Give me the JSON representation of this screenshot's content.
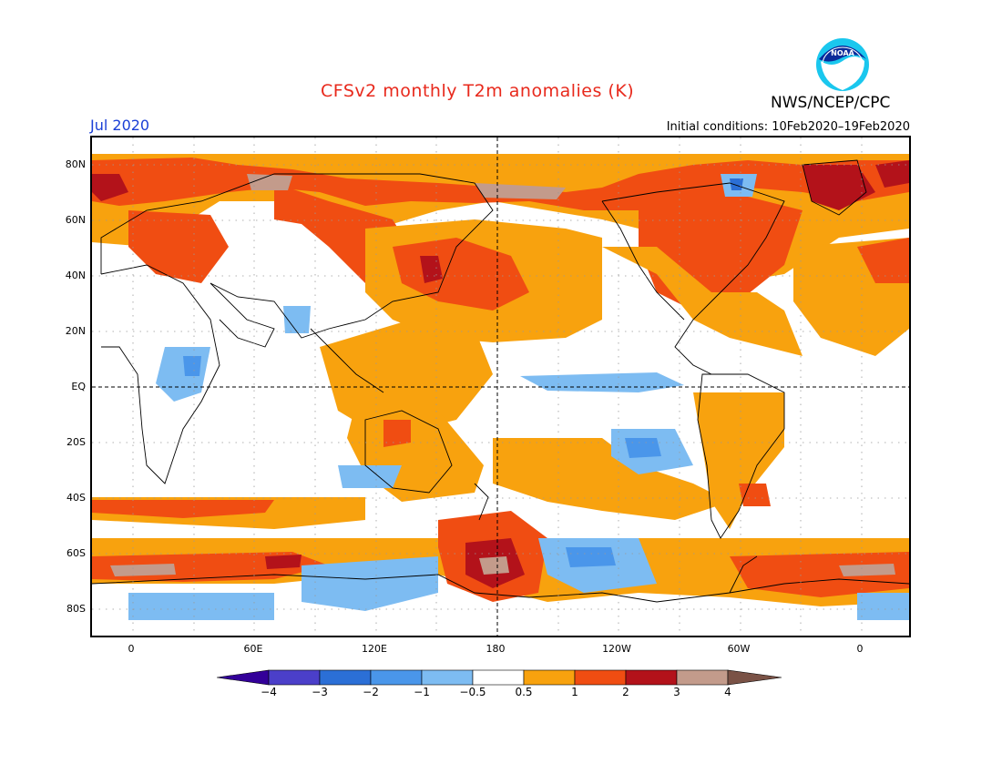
{
  "header": {
    "title": "CFSv2 monthly T2m anomalies (K)",
    "agency": "NWS/NCEP/CPC",
    "valid_month": "Jul 2020",
    "initial_conditions": "Initial conditions: 10Feb2020–19Feb2020",
    "logo_text": "NOAA"
  },
  "map": {
    "projection": "cylindrical equidistant",
    "lat_labels": [
      "80N",
      "60N",
      "40N",
      "20N",
      "EQ",
      "20S",
      "40S",
      "60S",
      "80S"
    ],
    "lon_labels": [
      "0",
      "60E",
      "120E",
      "180",
      "120W",
      "60W",
      "0"
    ],
    "center_meridian": "180",
    "gridlines": "dotted"
  },
  "colorbar": {
    "labels": [
      "−4",
      "−3",
      "−2",
      "−1",
      "−0.5",
      "0.5",
      "1",
      "2",
      "3",
      "4"
    ],
    "colors": [
      "#330099",
      "#4b3fc9",
      "#2b6fd6",
      "#4a96ea",
      "#7dbcf2",
      "#ffffff",
      "#f8a20e",
      "#f04d12",
      "#b3121a",
      "#c39b8b",
      "#7a5246"
    ]
  }
}
